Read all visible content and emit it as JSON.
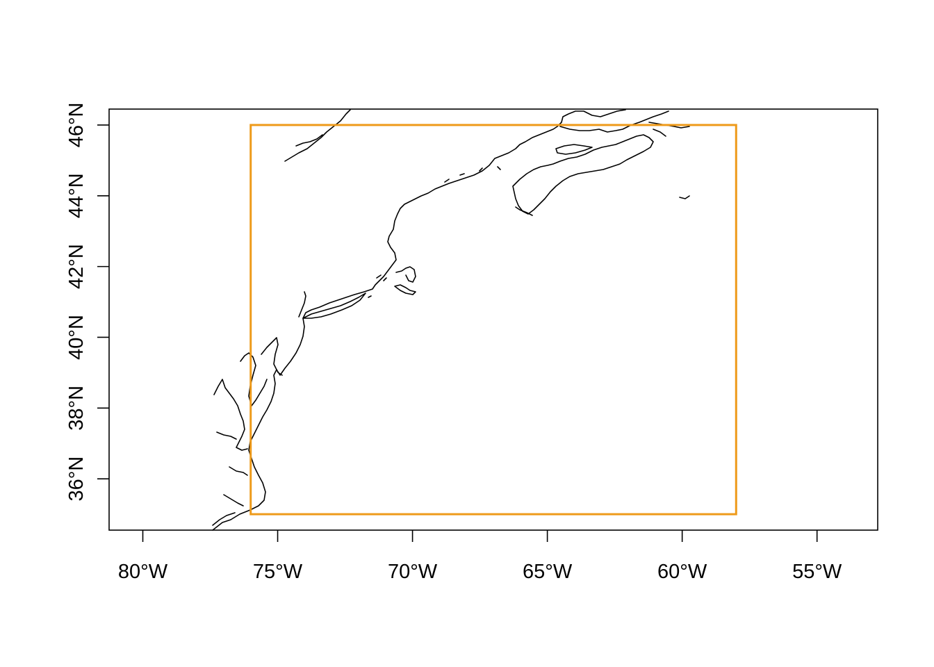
{
  "map": {
    "x_axis": {
      "ticks": [
        {
          "value": -80,
          "label": "80°W"
        },
        {
          "value": -75,
          "label": "75°W"
        },
        {
          "value": -70,
          "label": "70°W"
        },
        {
          "value": -65,
          "label": "65°W"
        },
        {
          "value": -60,
          "label": "60°W"
        },
        {
          "value": -55,
          "label": "55°W"
        }
      ]
    },
    "y_axis": {
      "ticks": [
        {
          "value": 36,
          "label": "36°N"
        },
        {
          "value": 38,
          "label": "38°N"
        },
        {
          "value": 40,
          "label": "40°N"
        },
        {
          "value": 42,
          "label": "42°N"
        },
        {
          "value": 44,
          "label": "44°N"
        },
        {
          "value": 46,
          "label": "46°N"
        }
      ]
    },
    "lon_range": [
      -81.25,
      -52.75
    ],
    "lat_range": [
      34.55,
      46.45
    ],
    "bounding_box": {
      "lon_min": -76,
      "lon_max": -58,
      "lat_min": 35,
      "lat_max": 46,
      "color": "#EE9A1A"
    },
    "coastline_color": "#000000"
  }
}
